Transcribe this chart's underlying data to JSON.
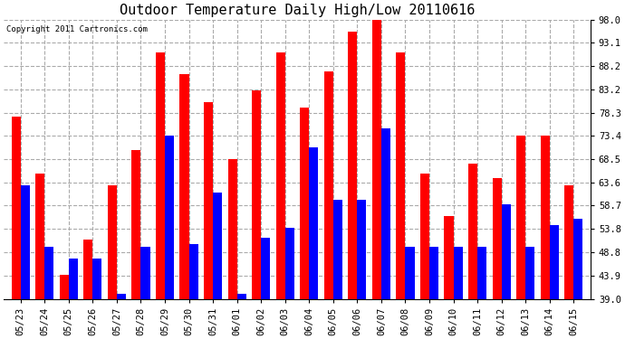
{
  "title": "Outdoor Temperature Daily High/Low 20110616",
  "copyright_text": "Copyright 2011 Cartronics.com",
  "dates": [
    "05/23",
    "05/24",
    "05/25",
    "05/26",
    "05/27",
    "05/28",
    "05/29",
    "05/30",
    "05/31",
    "06/01",
    "06/02",
    "06/03",
    "06/04",
    "06/05",
    "06/06",
    "06/07",
    "06/08",
    "06/09",
    "06/10",
    "06/11",
    "06/12",
    "06/13",
    "06/14",
    "06/15"
  ],
  "highs": [
    77.5,
    65.5,
    44.0,
    51.5,
    63.0,
    70.5,
    91.0,
    86.5,
    80.5,
    68.5,
    83.0,
    91.0,
    79.5,
    87.0,
    95.5,
    98.0,
    91.0,
    65.5,
    56.5,
    67.5,
    64.5,
    73.5,
    73.5,
    63.0
  ],
  "lows": [
    63.0,
    50.0,
    47.5,
    47.5,
    40.0,
    50.0,
    73.5,
    50.5,
    61.5,
    40.0,
    52.0,
    54.0,
    71.0,
    60.0,
    60.0,
    75.0,
    50.0,
    50.0,
    50.0,
    50.0,
    59.0,
    50.0,
    54.5,
    56.0
  ],
  "bar_width": 0.38,
  "high_color": "#ff0000",
  "low_color": "#0000ff",
  "bg_color": "#ffffff",
  "grid_color": "#aaaaaa",
  "yticks": [
    39.0,
    43.9,
    48.8,
    53.8,
    58.7,
    63.6,
    68.5,
    73.4,
    78.3,
    83.2,
    88.2,
    93.1,
    98.0
  ],
  "ymin": 39.0,
  "ymax": 98.0,
  "title_fontsize": 11,
  "tick_fontsize": 7.5,
  "copyright_fontsize": 6.5
}
